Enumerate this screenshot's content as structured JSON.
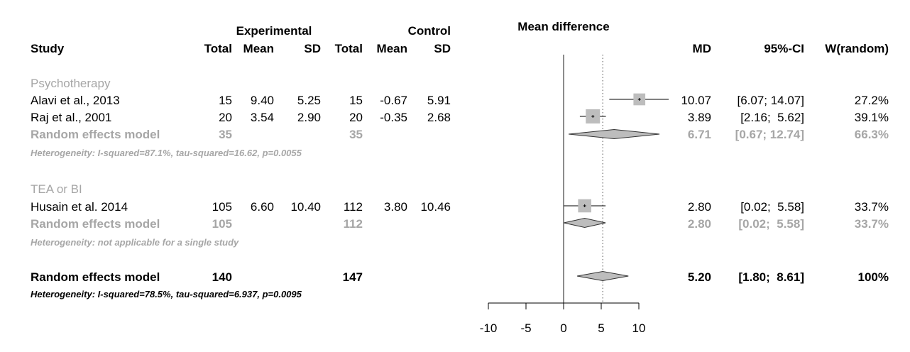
{
  "header": {
    "group1": "Experimental",
    "group2": "Control",
    "plot_title": "Mean difference",
    "study": "Study",
    "total1": "Total",
    "mean1": "Mean",
    "sd1": "SD",
    "total2": "Total",
    "mean2": "Mean",
    "sd2": "SD",
    "md": "MD",
    "ci": "95%-CI",
    "weight": "W(random)"
  },
  "colors": {
    "subgroup": "#a6a6a6",
    "box": "#bdbdbd",
    "diamond": "#bdbdbd",
    "text": "#000000"
  },
  "groups": [
    {
      "name": "Psychotherapy",
      "studies": [
        {
          "study": "Alavi et al., 2013",
          "total1": "15",
          "mean1": "9.40",
          "sd1": "5.25",
          "total2": "15",
          "mean2": "-0.67",
          "sd2": "5.91",
          "md_text": "10.07",
          "ci_text": "[6.07; 14.07]",
          "w_text": "27.2%"
        },
        {
          "study": "Raj et al., 2001",
          "total1": "20",
          "mean1": "3.54",
          "sd1": "2.90",
          "total2": "20",
          "mean2": "-0.35",
          "sd2": "2.68",
          "md_text": "3.89",
          "ci_text": "[2.16;  5.62]",
          "w_text": "39.1%"
        }
      ],
      "random": {
        "label": "Random effects model",
        "total1": "35",
        "total2": "35",
        "md_text": "6.71",
        "ci_text": "[0.67; 12.74]",
        "w_text": "66.3%"
      },
      "heterogeneity": "Heterogeneity: I-squared=87.1%, tau-squared=16.62, p=0.0055"
    },
    {
      "name": "TEA or BI",
      "studies": [
        {
          "study": "Husain et al. 2014",
          "total1": "105",
          "mean1": "6.60",
          "sd1": "10.40",
          "total2": "112",
          "mean2": "3.80",
          "sd2": "10.46",
          "md_text": "2.80",
          "ci_text": "[0.02;  5.58]",
          "w_text": "33.7%"
        }
      ],
      "random": {
        "label": "Random effects model",
        "total1": "105",
        "total2": "112",
        "md_text": "2.80",
        "ci_text": "[0.02;  5.58]",
        "w_text": "33.7%"
      },
      "heterogeneity": "Heterogeneity: not applicable for a single study"
    }
  ],
  "overall": {
    "label": "Random effects model",
    "total1": "140",
    "total2": "147",
    "md_text": "5.20",
    "ci_text": "[1.80;  8.61]",
    "w_text": "100%",
    "heterogeneity": "Heterogeneity: I-squared=78.5%, tau-squared=6.937, p=0.0095"
  },
  "chart_data": {
    "type": "forest",
    "title": "Mean difference",
    "xlim": [
      -10,
      10
    ],
    "x_ticks": [
      -10,
      -5,
      0,
      5,
      10
    ],
    "x_tick_labels": [
      "-10",
      "-5",
      "0",
      "5",
      "10"
    ],
    "reference_line": 0,
    "summary_line": 5.2,
    "studies": [
      {
        "name": "Alavi et al., 2013",
        "md": 10.07,
        "lower": 6.07,
        "upper": 14.07,
        "weight": 27.2
      },
      {
        "name": "Raj et al., 2001",
        "md": 3.89,
        "lower": 2.16,
        "upper": 5.62,
        "weight": 39.1
      },
      {
        "name": "Husain et al. 2014",
        "md": 2.8,
        "lower": 0.02,
        "upper": 5.58,
        "weight": 33.7
      }
    ],
    "pooled": [
      {
        "name": "Psychotherapy",
        "md": 6.71,
        "lower": 0.67,
        "upper": 12.74
      },
      {
        "name": "TEA or BI",
        "md": 2.8,
        "lower": 0.02,
        "upper": 5.58
      },
      {
        "name": "Overall",
        "md": 5.2,
        "lower": 1.8,
        "upper": 8.61
      }
    ]
  }
}
